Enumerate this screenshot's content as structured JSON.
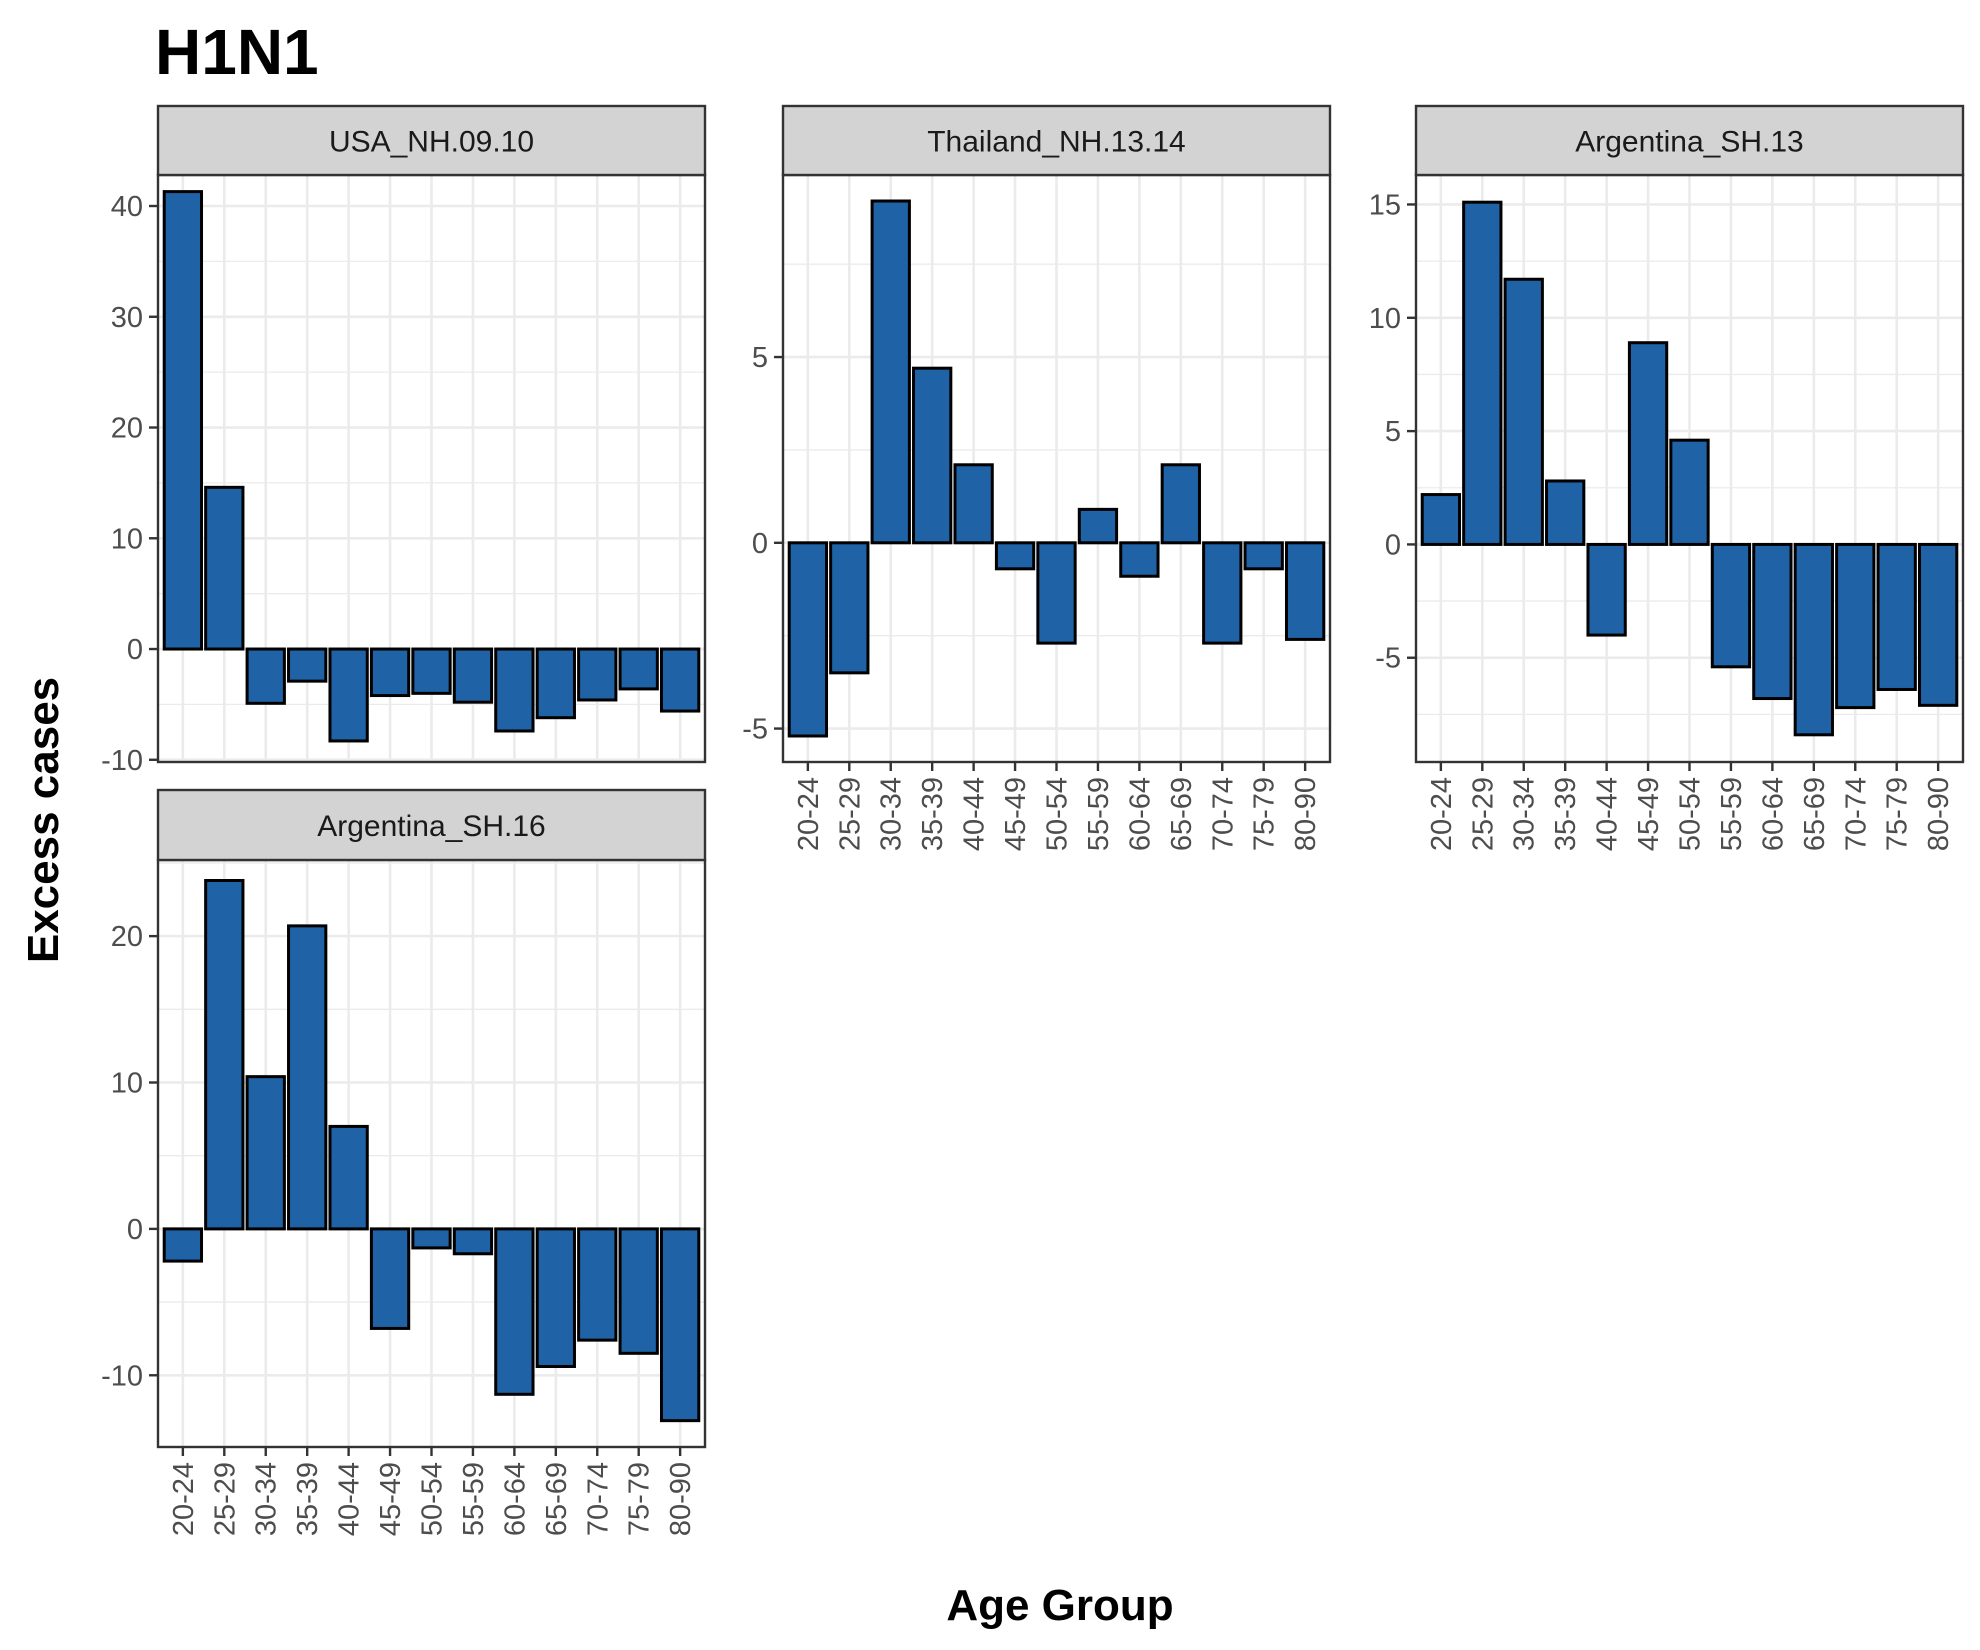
{
  "chart_data": {
    "type": "bar",
    "title": "H1N1",
    "xlabel": "Age Group",
    "ylabel": "Excess cases",
    "categories": [
      "20-24",
      "25-29",
      "30-34",
      "35-39",
      "40-44",
      "45-49",
      "50-54",
      "55-59",
      "60-64",
      "65-69",
      "70-74",
      "75-79",
      "80-90"
    ],
    "colors": {
      "bar_fill": "#1f63a6",
      "bar_stroke": "#000000",
      "strip_fill": "#d3d3d3",
      "grid": "#ebebeb"
    },
    "grid": true,
    "panels": [
      {
        "name": "USA_NH.09.10",
        "values": [
          41.3,
          14.6,
          -4.9,
          -2.9,
          -8.3,
          -4.2,
          -4.0,
          -4.8,
          -7.4,
          -6.2,
          -4.6,
          -3.6,
          -5.6
        ],
        "ylim": [
          -10.2,
          42.8
        ],
        "yticks": [
          -10,
          0,
          10,
          20,
          30,
          40
        ],
        "ytick_labels": [
          "-10",
          "0",
          "10",
          "20",
          "30",
          "40"
        ],
        "show_xticks": false
      },
      {
        "name": "Thailand_NH.13.14",
        "values": [
          -5.2,
          -3.5,
          9.2,
          4.7,
          2.1,
          -0.7,
          -2.7,
          0.9,
          -0.9,
          2.1,
          -2.7,
          -0.7,
          -2.6
        ],
        "ylim": [
          -5.9,
          9.9
        ],
        "yticks": [
          -5,
          0,
          5
        ],
        "ytick_labels": [
          "-5",
          "0",
          "5"
        ],
        "show_xticks": true
      },
      {
        "name": "Argentina_SH.13",
        "values": [
          2.2,
          15.1,
          11.7,
          2.8,
          -4.0,
          8.9,
          4.6,
          -5.4,
          -6.8,
          -8.4,
          -7.2,
          -6.4,
          -7.1
        ],
        "ylim": [
          -9.6,
          16.3
        ],
        "yticks": [
          -5,
          0,
          5,
          10,
          15
        ],
        "ytick_labels": [
          "-5",
          "0",
          "5",
          "10",
          "15"
        ],
        "show_xticks": true
      },
      {
        "name": "Argentina_SH.16",
        "values": [
          -2.2,
          23.8,
          10.4,
          20.7,
          7.0,
          -6.8,
          -1.3,
          -1.7,
          -11.3,
          -9.4,
          -7.6,
          -8.5,
          -13.1
        ],
        "ylim": [
          -14.9,
          25.2
        ],
        "yticks": [
          -10,
          0,
          10,
          20
        ],
        "ytick_labels": [
          "-10",
          "0",
          "10",
          "20"
        ],
        "show_xticks": true
      }
    ]
  }
}
